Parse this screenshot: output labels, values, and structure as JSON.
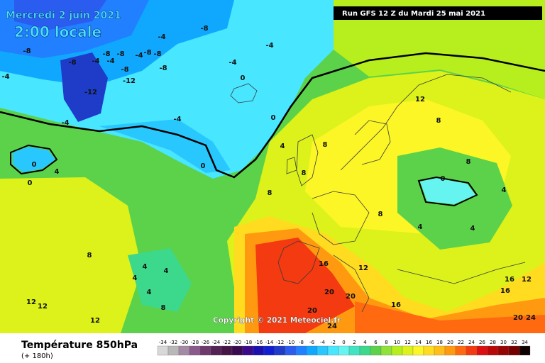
{
  "header": {
    "date": "Mercredi 2 juin 2021",
    "time": "2:00 locale",
    "run": "Run GFS 12 Z du Mardi 25 mai 2021"
  },
  "copyright": "Copyright © 2021 Meteociel.fr",
  "footer": {
    "title": "Température 850hPa",
    "subtitle": "(+ 180h)"
  },
  "legend": {
    "values": [
      -34,
      -32,
      -30,
      -28,
      -26,
      -24,
      -22,
      -20,
      -18,
      -16,
      -14,
      -12,
      -10,
      -8,
      -6,
      -4,
      -2,
      0,
      2,
      4,
      6,
      8,
      10,
      12,
      14,
      16,
      18,
      20,
      22,
      24,
      26,
      28,
      30,
      32,
      34
    ],
    "colors": [
      "#d8d8d8",
      "#b8b8b8",
      "#a48aa4",
      "#8a5a8a",
      "#6e3a6e",
      "#552255",
      "#451545",
      "#3a0a50",
      "#3a0a8a",
      "#1a10b0",
      "#1020d0",
      "#1e3cc8",
      "#2a5cf0",
      "#2080ff",
      "#10a8ff",
      "#28c8ff",
      "#48e6ff",
      "#66f4f0",
      "#40e4c0",
      "#3cd88c",
      "#5cd24a",
      "#8ee23a",
      "#b6ee1e",
      "#dcf21a",
      "#fcf626",
      "#ffdc20",
      "#ffbe18",
      "#ff9a10",
      "#ff6a10",
      "#f43a10",
      "#dc1010",
      "#b80808",
      "#960404",
      "#740000",
      "#100000"
    ]
  },
  "contour_labels": [
    -8,
    -4,
    -8,
    -8,
    -8,
    -8,
    -8,
    -4,
    -4,
    -4,
    -4,
    -4,
    -8,
    -8,
    -8,
    -12,
    -12,
    -4,
    0,
    -4,
    -4,
    0,
    0,
    4,
    8,
    4,
    0,
    0,
    8,
    8,
    12,
    8,
    8,
    0,
    4,
    8,
    4,
    4,
    8,
    4,
    4,
    4,
    4,
    8,
    12,
    12,
    12,
    16,
    12,
    16,
    16,
    12,
    20,
    20,
    16,
    20,
    24,
    20,
    24
  ]
}
